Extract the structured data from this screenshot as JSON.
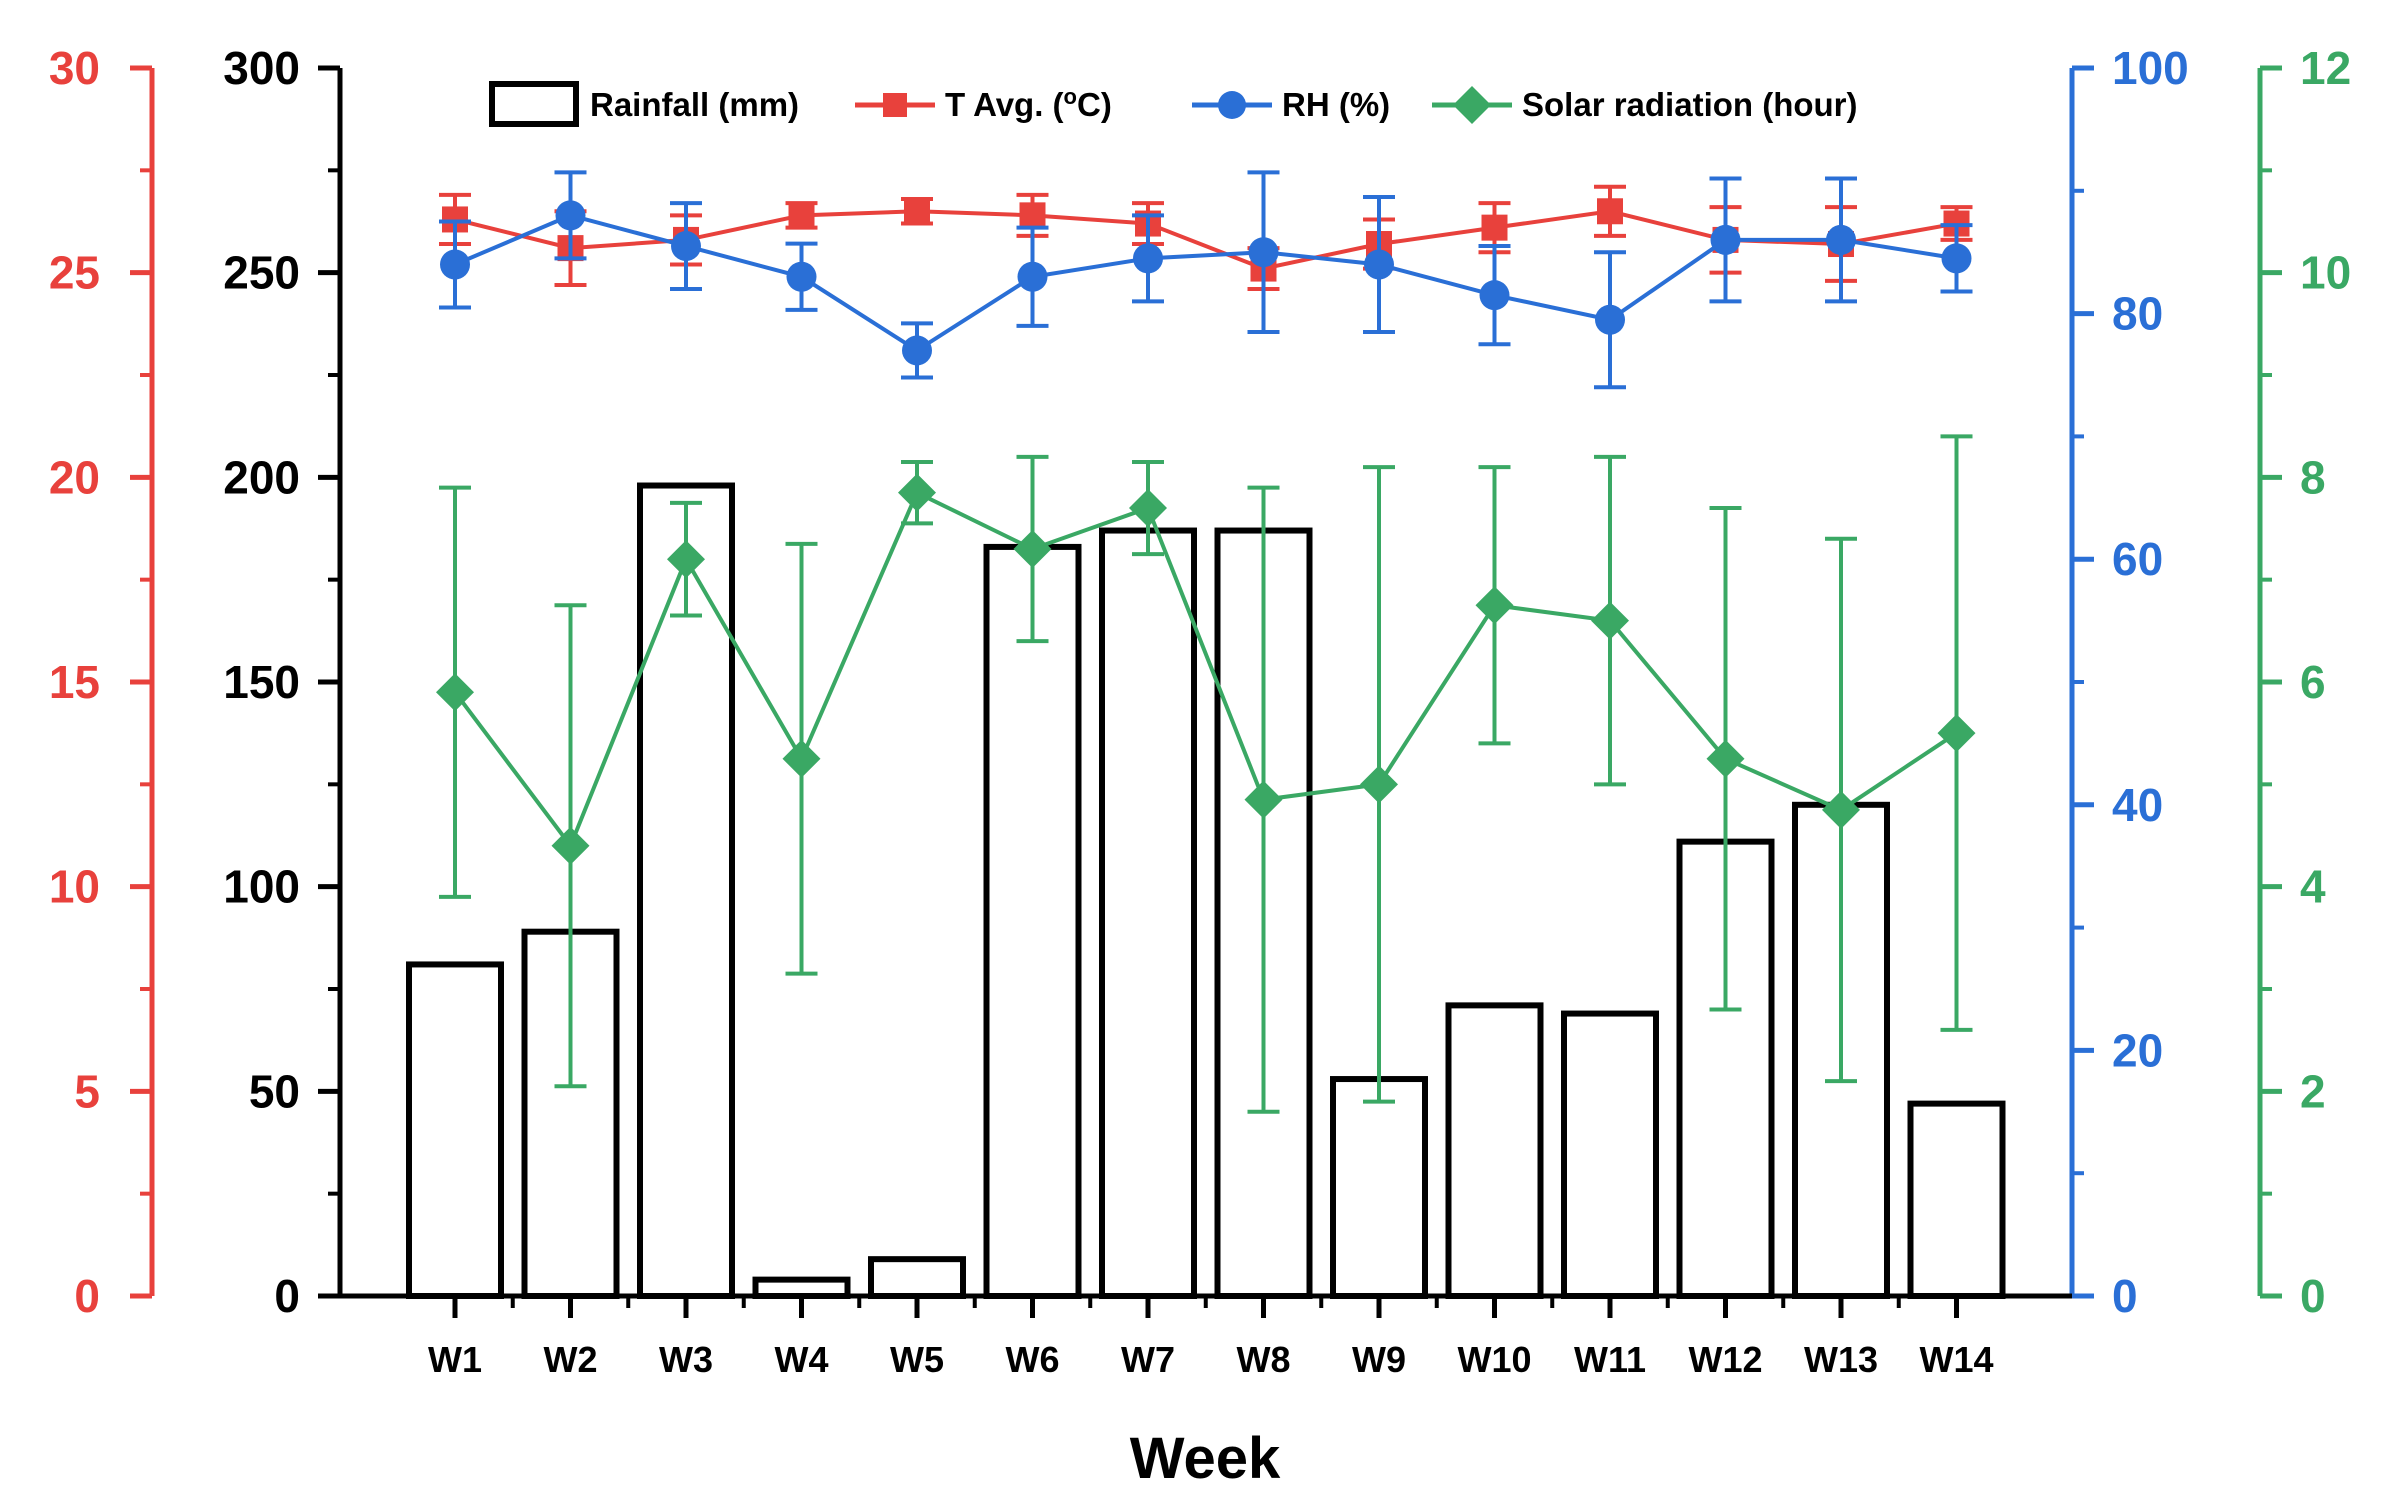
{
  "chart_data": {
    "type": "bar+line",
    "xlabel": "Week",
    "categories": [
      "W1",
      "W2",
      "W3",
      "W4",
      "W5",
      "W6",
      "W7",
      "W8",
      "W9",
      "W10",
      "W11",
      "W12",
      "W13",
      "W14"
    ],
    "axes": {
      "temp": {
        "ylim": [
          0,
          30
        ],
        "ticks": [
          0,
          5,
          10,
          15,
          20,
          25,
          30
        ],
        "color": "#e8413c",
        "label_text": [
          "0",
          "5",
          "10",
          "15",
          "20",
          "25",
          "30"
        ]
      },
      "rain": {
        "ylim": [
          0,
          300
        ],
        "ticks": [
          0,
          50,
          100,
          150,
          200,
          250,
          300
        ],
        "color": "#000000",
        "label_text": [
          "0",
          "50",
          "100",
          "150",
          "200",
          "250",
          "300"
        ]
      },
      "rh": {
        "ylim": [
          0,
          100
        ],
        "ticks": [
          0,
          20,
          40,
          60,
          80,
          100
        ],
        "color": "#2a6fd6",
        "label_text": [
          "0",
          "20",
          "40",
          "60",
          "80",
          "100"
        ]
      },
      "solar": {
        "ylim": [
          0,
          12
        ],
        "ticks": [
          0,
          2,
          4,
          6,
          8,
          10,
          12
        ],
        "color": "#3aa864",
        "label_text": [
          "0",
          "2",
          "4",
          "6",
          "8",
          "10",
          "12"
        ]
      }
    },
    "series": [
      {
        "name": "Rainfall (mm)",
        "kind": "bar",
        "axis": "rain",
        "color": "#000000",
        "values": [
          81,
          89,
          198,
          4,
          9,
          183,
          187,
          187,
          53,
          71,
          69,
          111,
          120,
          47
        ]
      },
      {
        "name": "T Avg. (°C)",
        "kind": "line",
        "axis": "temp",
        "marker": "square",
        "color": "#e8413c",
        "values": [
          26.3,
          25.6,
          25.8,
          26.4,
          26.5,
          26.4,
          26.2,
          25.1,
          25.7,
          26.1,
          26.5,
          25.8,
          25.7,
          26.2
        ],
        "errors": [
          0.6,
          0.9,
          0.6,
          0.3,
          0.3,
          0.5,
          0.5,
          0.5,
          0.6,
          0.6,
          0.6,
          0.8,
          0.9,
          0.4
        ]
      },
      {
        "name": "RH (%)",
        "kind": "line",
        "axis": "rh",
        "marker": "circle",
        "color": "#2a6fd6",
        "values": [
          84,
          88,
          85.5,
          83,
          77,
          83,
          84.5,
          85,
          84,
          81.5,
          79.5,
          86,
          86,
          84.5
        ],
        "errors": [
          3.5,
          3.5,
          3.5,
          2.7,
          2.2,
          4,
          3.5,
          6.5,
          5.5,
          4,
          5.5,
          5,
          5,
          2.7
        ]
      },
      {
        "name": "Solar radiation (hour)",
        "kind": "line",
        "axis": "solar",
        "marker": "diamond",
        "color": "#3aa864",
        "values": [
          5.9,
          4.4,
          7.2,
          5.25,
          7.85,
          7.3,
          7.7,
          4.85,
          5.0,
          6.75,
          6.6,
          5.25,
          4.75,
          5.5
        ],
        "errors": [
          2.0,
          2.35,
          0.55,
          2.1,
          0.3,
          0.9,
          0.45,
          3.05,
          3.1,
          1.35,
          1.6,
          2.45,
          2.65,
          2.9
        ]
      }
    ],
    "legend": {
      "position": "top",
      "items": [
        "Rainfall (mm)",
        "T Avg. (°C)",
        "RH (%)",
        "Solar radiation (hour)"
      ]
    }
  }
}
